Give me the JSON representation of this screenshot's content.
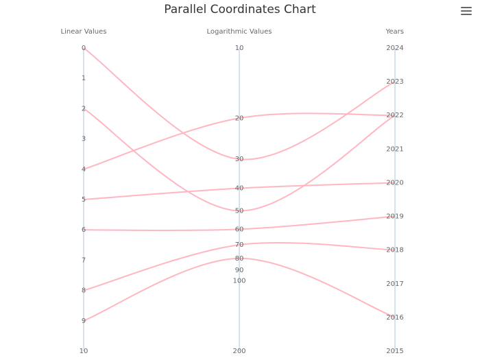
{
  "chart_data": {
    "type": "parallel-coordinates",
    "title": "Parallel Coordinates Chart",
    "line_color": "#ffb6c1",
    "axis_color": "#b0c4de",
    "axes": [
      {
        "name": "Linear Values",
        "scale": "linear",
        "range": [
          0,
          10
        ],
        "ticks": [
          "0",
          "1",
          "2",
          "3",
          "4",
          "5",
          "6",
          "7",
          "8",
          "9",
          "10"
        ]
      },
      {
        "name": "Logarithmic Values",
        "scale": "log",
        "range": [
          10,
          200
        ],
        "ticks": [
          "10",
          "20",
          "30",
          "40",
          "50",
          "60",
          "70",
          "80",
          "90",
          "100",
          "200"
        ]
      },
      {
        "name": "Years",
        "scale": "linear",
        "range": [
          2024,
          2015
        ],
        "ticks": [
          "2024",
          "2023",
          "2022",
          "2021",
          "2020",
          "2019",
          "2018",
          "2017",
          "2016",
          "2015"
        ]
      }
    ],
    "series": [
      {
        "values": [
          0,
          30,
          2023
        ]
      },
      {
        "values": [
          2,
          50,
          2022
        ]
      },
      {
        "values": [
          4,
          20,
          2022
        ]
      },
      {
        "values": [
          5,
          40,
          2020
        ]
      },
      {
        "values": [
          6,
          60,
          2019
        ]
      },
      {
        "values": [
          8,
          70,
          2018
        ]
      },
      {
        "values": [
          9,
          80,
          2016
        ]
      }
    ]
  }
}
